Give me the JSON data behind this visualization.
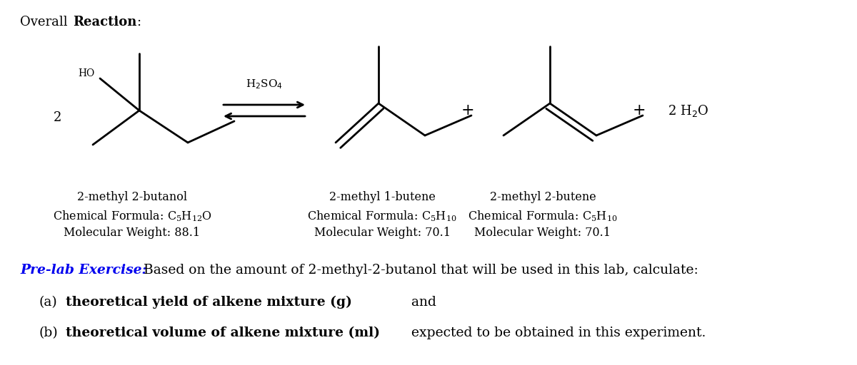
{
  "background_color": "#ffffff",
  "prelab_blue": "#0000EE",
  "title_normal": "Overall ",
  "title_bold": "Reaction",
  "title_colon": ":",
  "coeff": "2",
  "reagent": "H$_2$SO$_4$",
  "water": "2 H$_2$O",
  "compound1_name": "2-methyl 2-butanol",
  "compound1_formula": "Chemical Formula: $\\mathregular{C_5H_{12}O}$",
  "compound1_mw": "Molecular Weight: 88.1",
  "compound2_name": "2-methyl 1-butene",
  "compound2_formula": "Chemical Formula: $\\mathregular{C_5H_{10}}$",
  "compound2_mw": "Molecular Weight: 70.1",
  "compound3_name": "2-methyl 2-butene",
  "compound3_formula": "Chemical Formula: $\\mathregular{C_5H_{10}}$",
  "compound3_mw": "Molecular Weight: 70.1",
  "prelab_label": "Pre-lab Exercise:",
  "prelab_rest": " Based on the amount of 2-methyl-2-butanol that will be used in this lab, calculate:",
  "item_a_bold": "theoretical yield of alkene mixture (g)",
  "item_a_normal": " and",
  "item_b_bold": "theoretical volume of alkene mixture (ml)",
  "item_b_normal": " expected to be obtained in this experiment.",
  "mol_lw": 2.0
}
